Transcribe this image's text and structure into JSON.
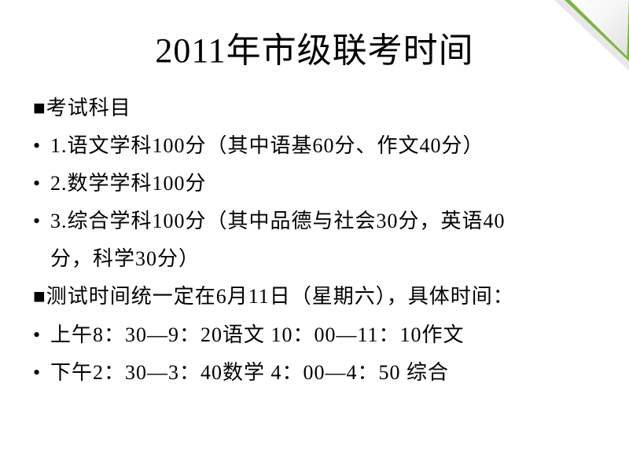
{
  "title": "2011年市级联考时间",
  "section1": {
    "header": "■考试科目",
    "items": [
      "1.语文学科100分（其中语基60分、作文40分）",
      "2.数学学科100分",
      "3.综合学科100分（其中品德与社会30分，英语40",
      "分，科学30分）"
    ]
  },
  "section2": {
    "header": "■测试时间统一定在6月11日（星期六），具体时间：",
    "items": [
      "上午8：30—9：20语文   10：00—11：10作文",
      "下午2：30—3：40数学   4：00—4：50   综合"
    ]
  },
  "colors": {
    "background": "#ffffff",
    "text": "#000000",
    "curl_green": "#7cb342",
    "curl_shadow": "#e8e8e8"
  },
  "typography": {
    "title_fontsize": 44,
    "body_fontsize": 26,
    "line_height": 1.85
  }
}
